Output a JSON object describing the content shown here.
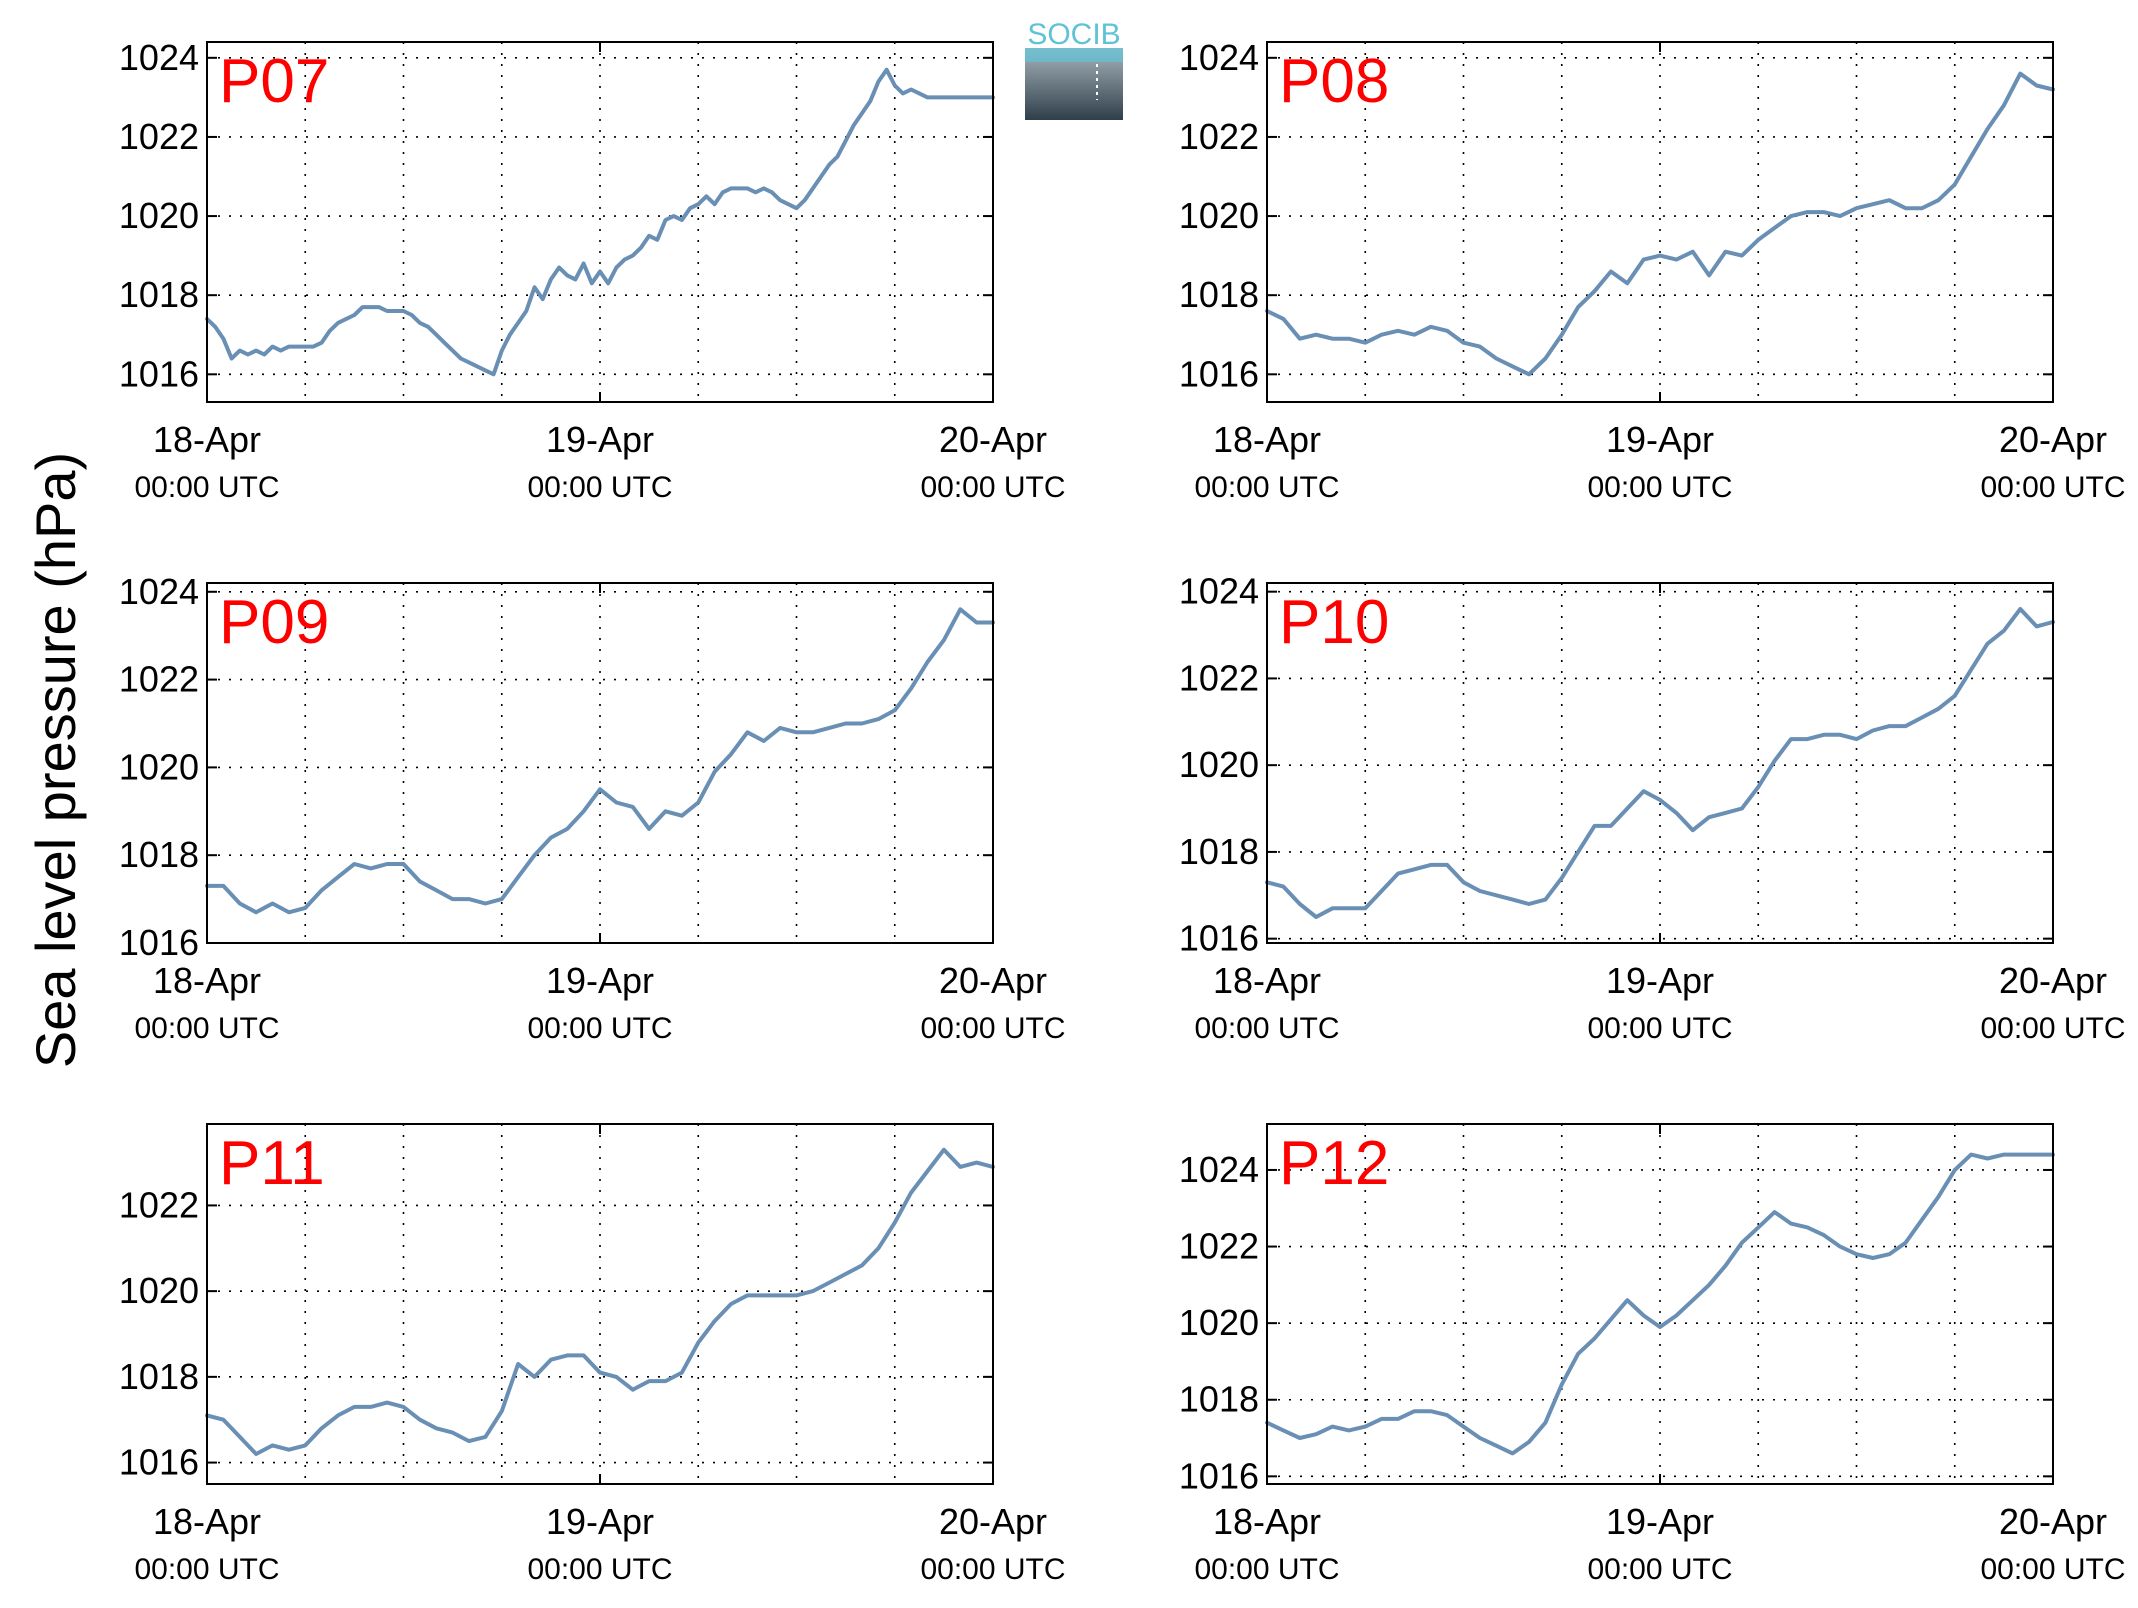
{
  "figure": {
    "ylabel": "Sea level pressure (hPa)",
    "logo_text": "SOCIB",
    "colors": {
      "line": "#6a8fb5",
      "panel_label": "#ff0000",
      "axis": "#000000",
      "grid": "#000000",
      "logo_text": "#5fc3d6",
      "logo_top": "#a8b4bc",
      "logo_bottom": "#2f3f4a"
    }
  },
  "chart_data": [
    {
      "type": "line",
      "title": "P07",
      "ylabel": "Sea level pressure (hPa)",
      "xlim": [
        0,
        48
      ],
      "ylim": [
        1015.3,
        1024.4
      ],
      "yticks": [
        1016,
        1018,
        1020,
        1022,
        1024
      ],
      "xticks": [
        0,
        24,
        48
      ],
      "xtick_labels": [
        {
          "date": "18-Apr",
          "time": "00:00 UTC"
        },
        {
          "date": "19-Apr",
          "time": "00:00 UTC"
        },
        {
          "date": "20-Apr",
          "time": "00:00 UTC"
        }
      ],
      "grid": true,
      "grid_x": [
        6,
        12,
        18,
        24,
        30,
        36,
        42
      ],
      "series": [
        {
          "x": [
            0,
            0.5,
            1,
            1.5,
            2,
            2.5,
            3,
            3.5,
            4,
            4.5,
            5,
            5.5,
            6,
            6.5,
            7,
            7.5,
            8,
            8.5,
            9,
            9.5,
            10,
            10.5,
            11,
            11.5,
            12,
            12.5,
            13,
            13.5,
            14,
            14.5,
            15,
            15.5,
            16,
            16.5,
            17,
            17.5,
            18,
            18.5,
            19,
            19.5,
            20,
            20.5,
            21,
            21.5,
            22,
            22.5,
            23,
            23.5,
            24,
            24.5,
            25,
            25.5,
            26,
            26.5,
            27,
            27.5,
            28,
            28.5,
            29,
            29.5,
            30,
            30.5,
            31,
            31.5,
            32,
            32.5,
            33,
            33.5,
            34,
            34.5,
            35,
            35.5,
            36,
            36.5,
            37,
            37.5,
            38,
            38.5,
            39,
            39.5,
            40,
            40.5,
            41,
            41.5,
            42,
            42.5,
            43,
            43.5,
            44,
            44.5,
            45,
            45.5,
            46,
            46.5,
            47,
            47.5,
            48
          ],
          "values": [
            1017.4,
            1017.2,
            1016.9,
            1016.4,
            1016.6,
            1016.5,
            1016.6,
            1016.5,
            1016.7,
            1016.6,
            1016.7,
            1016.7,
            1016.7,
            1016.7,
            1016.8,
            1017.1,
            1017.3,
            1017.4,
            1017.5,
            1017.7,
            1017.7,
            1017.7,
            1017.6,
            1017.6,
            1017.6,
            1017.5,
            1017.3,
            1017.2,
            1017.0,
            1016.8,
            1016.6,
            1016.4,
            1016.3,
            1016.2,
            1016.1,
            1016.0,
            1016.6,
            1017.0,
            1017.3,
            1017.6,
            1018.2,
            1017.9,
            1018.4,
            1018.7,
            1018.5,
            1018.4,
            1018.8,
            1018.3,
            1018.6,
            1018.3,
            1018.7,
            1018.9,
            1019.0,
            1019.2,
            1019.5,
            1019.4,
            1019.9,
            1020.0,
            1019.9,
            1020.2,
            1020.3,
            1020.5,
            1020.3,
            1020.6,
            1020.7,
            1020.7,
            1020.7,
            1020.6,
            1020.7,
            1020.6,
            1020.4,
            1020.3,
            1020.2,
            1020.4,
            1020.7,
            1021.0,
            1021.3,
            1021.5,
            1021.9,
            1022.3,
            1022.6,
            1022.9,
            1023.4,
            1023.7,
            1023.3,
            1023.1,
            1023.2,
            1023.1,
            1023.0,
            1023.0,
            1023.0,
            1023.0,
            1023.0,
            1023.0,
            1023.0,
            1023.0,
            1023.0
          ]
        }
      ]
    },
    {
      "type": "line",
      "title": "P08",
      "ylabel": "Sea level pressure (hPa)",
      "xlim": [
        0,
        48
      ],
      "ylim": [
        1015.3,
        1024.4
      ],
      "yticks": [
        1016,
        1018,
        1020,
        1022,
        1024
      ],
      "xticks": [
        0,
        24,
        48
      ],
      "xtick_labels": [
        {
          "date": "18-Apr",
          "time": "00:00 UTC"
        },
        {
          "date": "19-Apr",
          "time": "00:00 UTC"
        },
        {
          "date": "20-Apr",
          "time": "00:00 UTC"
        }
      ],
      "grid": true,
      "grid_x": [
        6,
        12,
        18,
        24,
        30,
        36,
        42
      ],
      "series": [
        {
          "x": [
            0,
            1,
            2,
            3,
            4,
            5,
            6,
            7,
            8,
            9,
            10,
            11,
            12,
            13,
            14,
            15,
            16,
            17,
            18,
            19,
            20,
            21,
            22,
            23,
            24,
            25,
            26,
            27,
            28,
            29,
            30,
            31,
            32,
            33,
            34,
            35,
            36,
            37,
            38,
            39,
            40,
            41,
            42,
            43,
            44,
            45,
            46,
            47,
            48
          ],
          "values": [
            1017.6,
            1017.4,
            1016.9,
            1017.0,
            1016.9,
            1016.9,
            1016.8,
            1017.0,
            1017.1,
            1017.0,
            1017.2,
            1017.1,
            1016.8,
            1016.7,
            1016.4,
            1016.2,
            1016.0,
            1016.4,
            1017.0,
            1017.7,
            1018.1,
            1018.6,
            1018.3,
            1018.9,
            1019.0,
            1018.9,
            1019.1,
            1018.5,
            1019.1,
            1019.0,
            1019.4,
            1019.7,
            1020.0,
            1020.1,
            1020.1,
            1020.0,
            1020.2,
            1020.3,
            1020.4,
            1020.2,
            1020.2,
            1020.4,
            1020.8,
            1021.5,
            1022.2,
            1022.8,
            1023.6,
            1023.3,
            1023.2
          ]
        }
      ]
    },
    {
      "type": "line",
      "title": "P09",
      "ylabel": "Sea level pressure (hPa)",
      "xlim": [
        0,
        48
      ],
      "ylim": [
        1016,
        1024.2
      ],
      "yticks": [
        1016,
        1018,
        1020,
        1022,
        1024
      ],
      "xticks": [
        0,
        24,
        48
      ],
      "xtick_labels": [
        {
          "date": "18-Apr",
          "time": "00:00 UTC"
        },
        {
          "date": "19-Apr",
          "time": "00:00 UTC"
        },
        {
          "date": "20-Apr",
          "time": "00:00 UTC"
        }
      ],
      "grid": true,
      "grid_x": [
        6,
        12,
        18,
        24,
        30,
        36,
        42
      ],
      "series": [
        {
          "x": [
            0,
            1,
            2,
            3,
            4,
            5,
            6,
            7,
            8,
            9,
            10,
            11,
            12,
            13,
            14,
            15,
            16,
            17,
            18,
            19,
            20,
            21,
            22,
            23,
            24,
            25,
            26,
            27,
            28,
            29,
            30,
            31,
            32,
            33,
            34,
            35,
            36,
            37,
            38,
            39,
            40,
            41,
            42,
            43,
            44,
            45,
            46,
            47,
            48
          ],
          "values": [
            1017.3,
            1017.3,
            1016.9,
            1016.7,
            1016.9,
            1016.7,
            1016.8,
            1017.2,
            1017.5,
            1017.8,
            1017.7,
            1017.8,
            1017.8,
            1017.4,
            1017.2,
            1017.0,
            1017.0,
            1016.9,
            1017.0,
            1017.5,
            1018.0,
            1018.4,
            1018.6,
            1019.0,
            1019.5,
            1019.2,
            1019.1,
            1018.6,
            1019.0,
            1018.9,
            1019.2,
            1019.9,
            1020.3,
            1020.8,
            1020.6,
            1020.9,
            1020.8,
            1020.8,
            1020.9,
            1021.0,
            1021.0,
            1021.1,
            1021.3,
            1021.8,
            1022.4,
            1022.9,
            1023.6,
            1023.3,
            1023.3
          ]
        }
      ]
    },
    {
      "type": "line",
      "title": "P10",
      "ylabel": "Sea level pressure (hPa)",
      "xlim": [
        0,
        48
      ],
      "ylim": [
        1015.9,
        1024.2
      ],
      "yticks": [
        1016,
        1018,
        1020,
        1022,
        1024
      ],
      "xticks": [
        0,
        24,
        48
      ],
      "xtick_labels": [
        {
          "date": "18-Apr",
          "time": "00:00 UTC"
        },
        {
          "date": "19-Apr",
          "time": "00:00 UTC"
        },
        {
          "date": "20-Apr",
          "time": "00:00 UTC"
        }
      ],
      "grid": true,
      "grid_x": [
        6,
        12,
        18,
        24,
        30,
        36,
        42
      ],
      "series": [
        {
          "x": [
            0,
            1,
            2,
            3,
            4,
            5,
            6,
            7,
            8,
            9,
            10,
            11,
            12,
            13,
            14,
            15,
            16,
            17,
            18,
            19,
            20,
            21,
            22,
            23,
            24,
            25,
            26,
            27,
            28,
            29,
            30,
            31,
            32,
            33,
            34,
            35,
            36,
            37,
            38,
            39,
            40,
            41,
            42,
            43,
            44,
            45,
            46,
            47,
            48
          ],
          "values": [
            1017.3,
            1017.2,
            1016.8,
            1016.5,
            1016.7,
            1016.7,
            1016.7,
            1017.1,
            1017.5,
            1017.6,
            1017.7,
            1017.7,
            1017.3,
            1017.1,
            1017.0,
            1016.9,
            1016.8,
            1016.9,
            1017.4,
            1018.0,
            1018.6,
            1018.6,
            1019.0,
            1019.4,
            1019.2,
            1018.9,
            1018.5,
            1018.8,
            1018.9,
            1019.0,
            1019.5,
            1020.1,
            1020.6,
            1020.6,
            1020.7,
            1020.7,
            1020.6,
            1020.8,
            1020.9,
            1020.9,
            1021.1,
            1021.3,
            1021.6,
            1022.2,
            1022.8,
            1023.1,
            1023.6,
            1023.2,
            1023.3
          ]
        }
      ]
    },
    {
      "type": "line",
      "title": "P11",
      "ylabel": "Sea level pressure (hPa)",
      "xlim": [
        0,
        48
      ],
      "ylim": [
        1015.5,
        1023.9
      ],
      "yticks": [
        1016,
        1018,
        1020,
        1022
      ],
      "xticks": [
        0,
        24,
        48
      ],
      "xtick_labels": [
        {
          "date": "18-Apr",
          "time": "00:00 UTC"
        },
        {
          "date": "19-Apr",
          "time": "00:00 UTC"
        },
        {
          "date": "20-Apr",
          "time": "00:00 UTC"
        }
      ],
      "grid": true,
      "grid_x": [
        6,
        12,
        18,
        24,
        30,
        36,
        42
      ],
      "series": [
        {
          "x": [
            0,
            1,
            2,
            3,
            4,
            5,
            6,
            7,
            8,
            9,
            10,
            11,
            12,
            13,
            14,
            15,
            16,
            17,
            18,
            19,
            20,
            21,
            22,
            23,
            24,
            25,
            26,
            27,
            28,
            29,
            30,
            31,
            32,
            33,
            34,
            35,
            36,
            37,
            38,
            39,
            40,
            41,
            42,
            43,
            44,
            45,
            46,
            47,
            48
          ],
          "values": [
            1017.1,
            1017.0,
            1016.6,
            1016.2,
            1016.4,
            1016.3,
            1016.4,
            1016.8,
            1017.1,
            1017.3,
            1017.3,
            1017.4,
            1017.3,
            1017.0,
            1016.8,
            1016.7,
            1016.5,
            1016.6,
            1017.2,
            1018.3,
            1018.0,
            1018.4,
            1018.5,
            1018.5,
            1018.1,
            1018.0,
            1017.7,
            1017.9,
            1017.9,
            1018.1,
            1018.8,
            1019.3,
            1019.7,
            1019.9,
            1019.9,
            1019.9,
            1019.9,
            1020.0,
            1020.2,
            1020.4,
            1020.6,
            1021.0,
            1021.6,
            1022.3,
            1022.8,
            1023.3,
            1022.9,
            1023.0,
            1022.9
          ]
        }
      ]
    },
    {
      "type": "line",
      "title": "P12",
      "ylabel": "Sea level pressure (hPa)",
      "xlim": [
        0,
        48
      ],
      "ylim": [
        1015.8,
        1025.2
      ],
      "yticks": [
        1016,
        1018,
        1020,
        1022,
        1024
      ],
      "xticks": [
        0,
        24,
        48
      ],
      "xtick_labels": [
        {
          "date": "18-Apr",
          "time": "00:00 UTC"
        },
        {
          "date": "19-Apr",
          "time": "00:00 UTC"
        },
        {
          "date": "20-Apr",
          "time": "00:00 UTC"
        }
      ],
      "grid": true,
      "grid_x": [
        6,
        12,
        18,
        24,
        30,
        36,
        42
      ],
      "series": [
        {
          "x": [
            0,
            1,
            2,
            3,
            4,
            5,
            6,
            7,
            8,
            9,
            10,
            11,
            12,
            13,
            14,
            15,
            16,
            17,
            18,
            19,
            20,
            21,
            22,
            23,
            24,
            25,
            26,
            27,
            28,
            29,
            30,
            31,
            32,
            33,
            34,
            35,
            36,
            37,
            38,
            39,
            40,
            41,
            42,
            43,
            44,
            45,
            46,
            47,
            48
          ],
          "values": [
            1017.4,
            1017.2,
            1017.0,
            1017.1,
            1017.3,
            1017.2,
            1017.3,
            1017.5,
            1017.5,
            1017.7,
            1017.7,
            1017.6,
            1017.3,
            1017.0,
            1016.8,
            1016.6,
            1016.9,
            1017.4,
            1018.4,
            1019.2,
            1019.6,
            1020.1,
            1020.6,
            1020.2,
            1019.9,
            1020.2,
            1020.6,
            1021.0,
            1021.5,
            1022.1,
            1022.5,
            1022.9,
            1022.6,
            1022.5,
            1022.3,
            1022.0,
            1021.8,
            1021.7,
            1021.8,
            1022.1,
            1022.7,
            1023.3,
            1024.0,
            1024.4,
            1024.3,
            1024.4,
            1024.4,
            1024.4,
            1024.4
          ]
        }
      ]
    }
  ]
}
